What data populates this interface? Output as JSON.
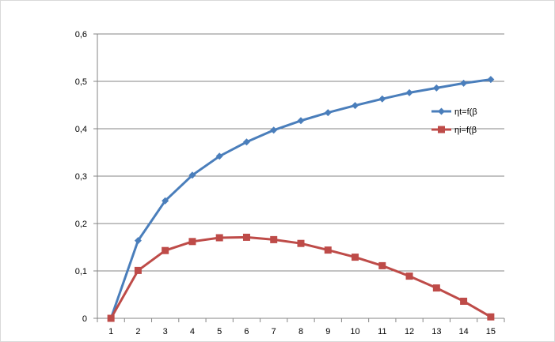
{
  "chart_data": {
    "type": "line",
    "x": [
      1,
      2,
      3,
      4,
      5,
      6,
      7,
      8,
      9,
      10,
      11,
      12,
      13,
      14,
      15
    ],
    "categories": [
      "1",
      "2",
      "3",
      "4",
      "5",
      "6",
      "7",
      "8",
      "9",
      "10",
      "11",
      "12",
      "13",
      "14",
      "15"
    ],
    "series": [
      {
        "name": "ηt=f(β",
        "color": "#4a7ebb",
        "marker": "diamond",
        "values": [
          0.0,
          0.164,
          0.248,
          0.302,
          0.342,
          0.372,
          0.397,
          0.417,
          0.434,
          0.449,
          0.463,
          0.476,
          0.486,
          0.496,
          0.504
        ]
      },
      {
        "name": "ηi=f(β",
        "color": "#be4b48",
        "marker": "square",
        "values": [
          0.0,
          0.101,
          0.143,
          0.162,
          0.17,
          0.171,
          0.166,
          0.158,
          0.144,
          0.129,
          0.111,
          0.089,
          0.064,
          0.036,
          0.003
        ]
      }
    ],
    "yticks": [
      "0",
      "0,1",
      "0,2",
      "0,3",
      "0,4",
      "0,5",
      "0,6"
    ],
    "ylim": [
      0,
      0.6
    ],
    "title": "",
    "xlabel": "",
    "ylabel": "",
    "grid": true,
    "legend": "right"
  }
}
